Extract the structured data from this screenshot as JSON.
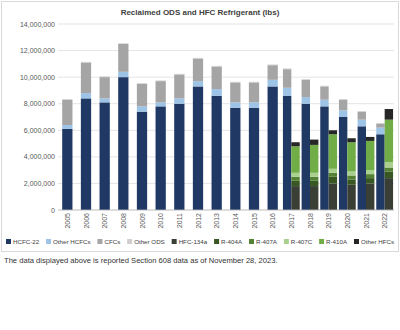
{
  "chart_data": {
    "type": "bar",
    "title": "Reclaimed ODS and HFC Refrigerant (lbs)",
    "footnote": "The data displayed above is reported Section 608 data as of November 28, 2023.",
    "stacked": true,
    "grid": true,
    "legend": "bottom",
    "categories": [
      "2005",
      "2006",
      "2007",
      "2008",
      "2009",
      "2010",
      "2011",
      "2012",
      "2013",
      "2014",
      "2015",
      "2016",
      "2017",
      null,
      "2018",
      null,
      "2019",
      null,
      "2020",
      null,
      "2021",
      null,
      "2022",
      null
    ],
    "ylim": [
      0,
      14000000
    ],
    "yticks": [
      0,
      {
        "value": 2000000,
        "label": "2,000,000"
      },
      {
        "value": 4000000,
        "label": "4,000,000"
      },
      {
        "value": 6000000,
        "label": "6,000,000"
      },
      {
        "value": 8000000,
        "label": "8,000,000"
      },
      {
        "value": 10000000,
        "label": "10,000,000"
      },
      {
        "value": 12000000,
        "label": "12,000,000"
      },
      {
        "value": 14000000,
        "label": "14,000,000"
      }
    ],
    "series": [
      {
        "name": "HCFC-22",
        "color": "#1f3864",
        "values": [
          6100000,
          8400000,
          8100000,
          10000000,
          7400000,
          7800000,
          8000000,
          9300000,
          8600000,
          7700000,
          7700000,
          9300000,
          8600000,
          null,
          8000000,
          null,
          7800000,
          null,
          7000000,
          null,
          6300000,
          null,
          5700000,
          null
        ]
      },
      {
        "name": "Other HCFCs",
        "color": "#9dc3e6",
        "values": [
          300000,
          400000,
          300000,
          400000,
          400000,
          300000,
          400000,
          400000,
          500000,
          400000,
          400000,
          500000,
          600000,
          null,
          500000,
          null,
          500000,
          null,
          500000,
          null,
          500000,
          null,
          500000,
          null
        ]
      },
      {
        "name": "CFCs",
        "color": "#a5a5a5",
        "values": [
          1900000,
          2300000,
          1600000,
          2100000,
          1700000,
          1600000,
          1800000,
          1700000,
          1700000,
          1500000,
          1500000,
          1100000,
          1400000,
          null,
          1300000,
          null,
          1000000,
          null,
          800000,
          null,
          600000,
          null,
          300000,
          null
        ]
      },
      {
        "name": "Other ODS",
        "color": "#d0cece",
        "values": [
          50000,
          50000,
          50000,
          50000,
          50000,
          50000,
          50000,
          50000,
          50000,
          50000,
          50000,
          50000,
          50000,
          null,
          50000,
          null,
          50000,
          null,
          50000,
          null,
          50000,
          null,
          50000,
          null
        ]
      },
      {
        "name": "HFC-134a",
        "color": "#3a3f36",
        "values": [
          null,
          null,
          null,
          null,
          null,
          null,
          null,
          null,
          null,
          null,
          null,
          null,
          null,
          1800000,
          null,
          1800000,
          null,
          2000000,
          null,
          1900000,
          null,
          2000000,
          null,
          2400000
        ]
      },
      {
        "name": "R-404A",
        "color": "#385723",
        "values": [
          null,
          null,
          null,
          null,
          null,
          null,
          null,
          null,
          null,
          null,
          null,
          null,
          null,
          400000,
          null,
          400000,
          null,
          500000,
          null,
          400000,
          null,
          400000,
          null,
          500000
        ]
      },
      {
        "name": "R-407A",
        "color": "#548235",
        "values": [
          null,
          null,
          null,
          null,
          null,
          null,
          null,
          null,
          null,
          null,
          null,
          null,
          null,
          300000,
          null,
          300000,
          null,
          300000,
          null,
          300000,
          null,
          300000,
          null,
          300000
        ]
      },
      {
        "name": "R-407C",
        "color": "#a9d08e",
        "values": [
          null,
          null,
          null,
          null,
          null,
          null,
          null,
          null,
          null,
          null,
          null,
          null,
          null,
          300000,
          null,
          300000,
          null,
          300000,
          null,
          300000,
          null,
          300000,
          null,
          400000
        ]
      },
      {
        "name": "R-410A",
        "color": "#70ad47",
        "values": [
          null,
          null,
          null,
          null,
          null,
          null,
          null,
          null,
          null,
          null,
          null,
          null,
          null,
          2000000,
          null,
          2100000,
          null,
          2600000,
          null,
          2200000,
          null,
          2200000,
          null,
          3200000
        ]
      },
      {
        "name": "Other HFCs",
        "color": "#262626",
        "values": [
          null,
          null,
          null,
          null,
          null,
          null,
          null,
          null,
          null,
          null,
          null,
          null,
          null,
          300000,
          null,
          400000,
          null,
          300000,
          null,
          300000,
          null,
          300000,
          null,
          800000
        ]
      }
    ]
  }
}
